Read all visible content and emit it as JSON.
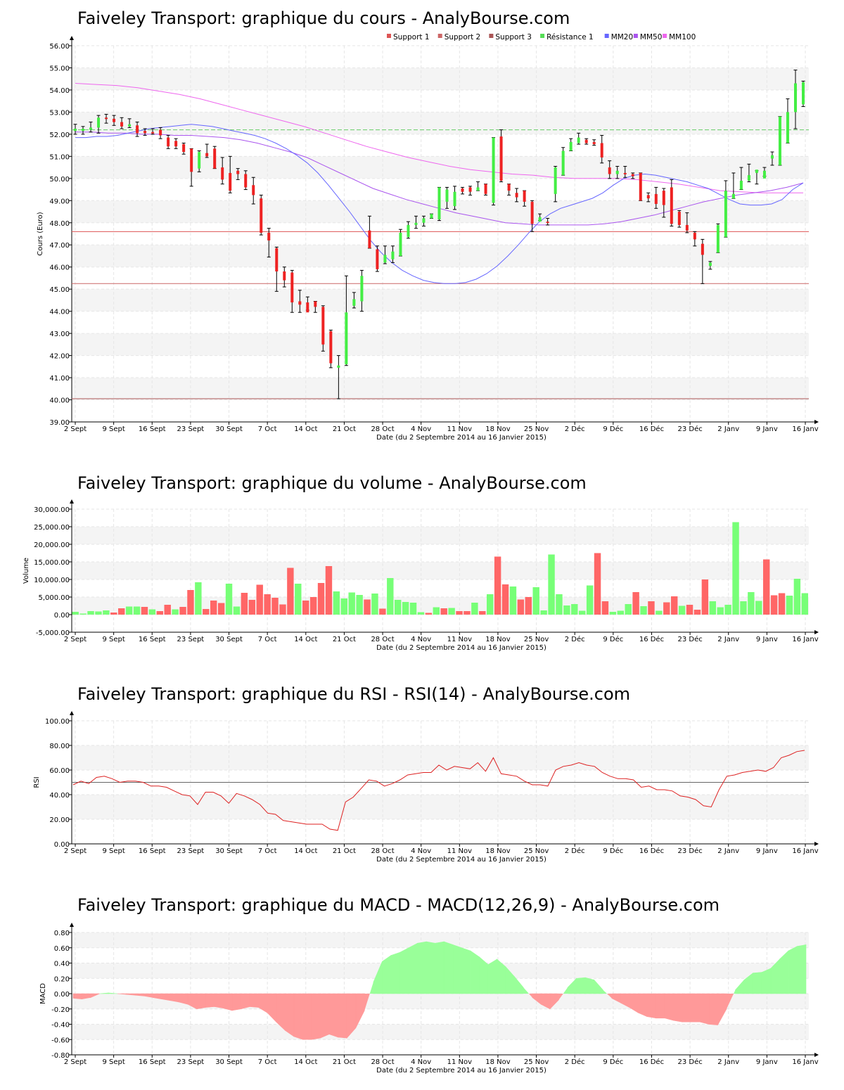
{
  "chart_data": [
    {
      "id": "cours",
      "type": "candlestick",
      "title": "Faiveley Transport: graphique du cours - AnalyBourse.com",
      "ylabel": "Cours (Euro)",
      "xlabel": "Date (du 2 Septembre 2014 au 16 Janvier 2015)",
      "ylim": [
        39,
        56
      ],
      "yticks": [
        "39.00",
        "40.00",
        "41.00",
        "42.00",
        "43.00",
        "44.00",
        "45.00",
        "46.00",
        "47.00",
        "48.00",
        "49.00",
        "50.00",
        "51.00",
        "52.00",
        "53.00",
        "54.00",
        "55.00",
        "56.00"
      ],
      "xticks": [
        "2 Sept",
        "9 Sept",
        "16 Sept",
        "23 Sept",
        "30 Sept",
        "7 Oct",
        "14 Oct",
        "21 Oct",
        "28 Oct",
        "4 Nov",
        "11 Nov",
        "18 Nov",
        "25 Nov",
        "2 Déc",
        "9 Déc",
        "16 Déc",
        "23 Déc",
        "2 Janv",
        "9 Janv",
        "16 Janv"
      ],
      "grid": true,
      "legend_position": "top-right",
      "legend": [
        {
          "name": "Support 1",
          "color": "#dd5555"
        },
        {
          "name": "Support 2",
          "color": "#cc6666"
        },
        {
          "name": "Support 3",
          "color": "#aa5555"
        },
        {
          "name": "Résistance 1",
          "color": "#55dd55"
        },
        {
          "name": "MM20",
          "color": "#6666ff"
        },
        {
          "name": "MM50",
          "color": "#aa55ee"
        },
        {
          "name": "MM100",
          "color": "#ee66ee"
        }
      ],
      "levels": {
        "support1": 47.6,
        "support2": 45.25,
        "support3": 40.05,
        "resistance1": 52.2
      },
      "candles": [
        [
          52.15,
          52.25,
          52.45,
          52.0
        ],
        [
          52.15,
          52.25,
          52.35,
          52.0
        ],
        [
          52.2,
          52.3,
          52.55,
          52.1
        ],
        [
          52.3,
          52.75,
          52.85,
          52.05
        ],
        [
          52.75,
          52.7,
          52.9,
          52.5
        ],
        [
          52.7,
          52.55,
          52.85,
          52.4
        ],
        [
          52.55,
          52.35,
          52.75,
          52.25
        ],
        [
          52.35,
          52.45,
          52.7,
          52.3
        ],
        [
          52.4,
          52.05,
          52.55,
          51.9
        ],
        [
          52.15,
          52.05,
          52.25,
          51.95
        ],
        [
          52.1,
          52.05,
          52.25,
          52.0
        ],
        [
          52.2,
          51.95,
          52.3,
          51.8
        ],
        [
          51.85,
          51.45,
          51.95,
          51.35
        ],
        [
          51.7,
          51.45,
          51.8,
          51.35
        ],
        [
          51.55,
          51.2,
          51.6,
          51.1
        ],
        [
          51.35,
          50.3,
          51.35,
          49.65
        ],
        [
          50.45,
          51.2,
          51.25,
          50.3
        ],
        [
          51.15,
          51.0,
          51.55,
          50.95
        ],
        [
          51.35,
          50.45,
          51.45,
          50.45
        ],
        [
          50.5,
          49.95,
          50.95,
          49.75
        ],
        [
          50.25,
          49.45,
          51.0,
          49.35
        ],
        [
          50.35,
          50.2,
          50.45,
          49.95
        ],
        [
          50.2,
          49.6,
          50.35,
          49.5
        ],
        [
          49.7,
          49.25,
          50.05,
          48.85
        ],
        [
          49.1,
          47.55,
          49.25,
          47.45
        ],
        [
          47.55,
          47.2,
          47.75,
          46.45
        ],
        [
          46.85,
          45.8,
          46.9,
          44.9
        ],
        [
          45.8,
          45.4,
          46.0,
          45.1
        ],
        [
          45.75,
          44.4,
          45.85,
          43.95
        ],
        [
          44.45,
          44.3,
          44.95,
          43.95
        ],
        [
          44.4,
          43.95,
          44.65,
          44.05
        ],
        [
          44.45,
          44.2,
          44.45,
          43.95
        ],
        [
          44.2,
          42.5,
          44.25,
          42.2
        ],
        [
          43.1,
          41.65,
          43.15,
          41.45
        ],
        [
          41.45,
          41.55,
          42.0,
          40.05
        ],
        [
          41.6,
          43.95,
          45.6,
          41.55
        ],
        [
          44.25,
          44.55,
          44.85,
          44.15
        ],
        [
          44.45,
          45.6,
          45.85,
          44.0
        ],
        [
          47.65,
          46.85,
          48.3,
          46.85
        ],
        [
          46.8,
          45.9,
          46.95,
          45.8
        ],
        [
          46.2,
          46.55,
          46.95,
          46.15
        ],
        [
          46.35,
          46.7,
          46.95,
          46.2
        ],
        [
          46.5,
          47.55,
          47.7,
          46.5
        ],
        [
          47.35,
          47.9,
          48.05,
          47.3
        ],
        [
          47.9,
          48.0,
          48.3,
          47.75
        ],
        [
          48.0,
          48.2,
          48.3,
          47.85
        ],
        [
          48.2,
          48.4,
          48.4,
          48.2
        ],
        [
          48.15,
          49.6,
          49.6,
          48.1
        ],
        [
          48.95,
          49.5,
          49.6,
          48.65
        ],
        [
          48.75,
          49.4,
          49.65,
          48.6
        ],
        [
          49.55,
          49.4,
          49.6,
          49.3
        ],
        [
          49.6,
          49.4,
          49.65,
          49.25
        ],
        [
          49.45,
          49.6,
          49.85,
          49.45
        ],
        [
          49.75,
          49.3,
          49.75,
          49.25
        ],
        [
          48.9,
          51.85,
          51.85,
          48.8
        ],
        [
          51.9,
          49.9,
          52.2,
          49.85
        ],
        [
          49.75,
          49.45,
          49.75,
          49.25
        ],
        [
          49.35,
          49.15,
          49.55,
          48.95
        ],
        [
          49.45,
          48.95,
          49.45,
          48.75
        ],
        [
          48.95,
          47.95,
          49.0,
          47.6
        ],
        [
          48.05,
          48.25,
          48.4,
          48.1
        ],
        [
          48.05,
          48.0,
          48.2,
          47.9
        ],
        [
          49.3,
          50.5,
          50.55,
          48.95
        ],
        [
          50.15,
          51.25,
          51.4,
          50.15
        ],
        [
          51.25,
          51.65,
          51.8,
          51.25
        ],
        [
          51.6,
          51.85,
          52.05,
          51.55
        ],
        [
          51.75,
          51.6,
          51.8,
          51.55
        ],
        [
          51.65,
          51.55,
          51.75,
          51.5
        ],
        [
          51.6,
          50.95,
          51.95,
          50.7
        ],
        [
          50.5,
          50.2,
          50.8,
          50.0
        ],
        [
          50.2,
          50.35,
          50.55,
          50.0
        ],
        [
          50.25,
          50.2,
          50.55,
          50.05
        ],
        [
          50.2,
          50.1,
          50.25,
          50.0
        ],
        [
          50.25,
          49.0,
          50.25,
          49.0
        ],
        [
          49.25,
          49.1,
          49.35,
          48.95
        ],
        [
          49.3,
          48.85,
          49.6,
          48.65
        ],
        [
          49.45,
          48.8,
          49.55,
          48.25
        ],
        [
          49.6,
          47.95,
          49.95,
          47.85
        ],
        [
          48.5,
          47.9,
          48.55,
          47.8
        ],
        [
          47.9,
          47.65,
          48.45,
          47.55
        ],
        [
          47.55,
          47.25,
          47.6,
          46.95
        ],
        [
          47.05,
          46.55,
          47.25,
          45.25
        ],
        [
          46.05,
          46.2,
          46.25,
          45.9
        ],
        [
          46.65,
          47.9,
          47.95,
          46.65
        ],
        [
          47.35,
          49.45,
          49.9,
          47.35
        ],
        [
          49.1,
          49.3,
          50.25,
          49.1
        ],
        [
          49.5,
          49.9,
          50.5,
          49.5
        ],
        [
          49.9,
          50.15,
          50.65,
          49.85
        ],
        [
          50.25,
          50.4,
          50.35,
          49.75
        ],
        [
          50.0,
          50.35,
          50.5,
          50.1
        ],
        [
          50.9,
          51.05,
          51.2,
          50.6
        ],
        [
          50.6,
          52.8,
          52.8,
          50.6
        ],
        [
          51.6,
          53.0,
          53.6,
          51.6
        ],
        [
          53.0,
          54.3,
          54.9,
          52.25
        ],
        [
          53.35,
          54.35,
          54.4,
          53.25
        ]
      ],
      "mm20": [
        51.85,
        51.85,
        51.9,
        51.9,
        51.95,
        52.05,
        52.15,
        52.25,
        52.3,
        52.35,
        52.4,
        52.45,
        52.4,
        52.35,
        52.25,
        52.15,
        52.05,
        51.95,
        51.8,
        51.6,
        51.35,
        51.05,
        50.7,
        50.25,
        49.7,
        49.1,
        48.5,
        47.85,
        47.2,
        46.65,
        46.2,
        45.85,
        45.6,
        45.4,
        45.3,
        45.25,
        45.25,
        45.3,
        45.45,
        45.7,
        46.05,
        46.5,
        47.0,
        47.55,
        48.05,
        48.4,
        48.65,
        48.8,
        48.95,
        49.1,
        49.35,
        49.7,
        50.0,
        50.15,
        50.2,
        50.15,
        50.05,
        49.95,
        49.85,
        49.7,
        49.55,
        49.3,
        49.05,
        48.85,
        48.8,
        48.8,
        48.85,
        49.05,
        49.5,
        49.8
      ],
      "mm50": [
        52.1,
        52.1,
        52.05,
        52.05,
        52.0,
        52.0,
        51.95,
        51.95,
        51.9,
        51.85,
        51.75,
        51.6,
        51.4,
        51.2,
        50.95,
        50.6,
        50.25,
        49.9,
        49.55,
        49.3,
        49.05,
        48.85,
        48.65,
        48.45,
        48.3,
        48.15,
        48.0,
        47.95,
        47.9,
        47.9,
        47.9,
        47.9,
        47.95,
        48.05,
        48.2,
        48.35,
        48.55,
        48.75,
        48.95,
        49.1,
        49.25,
        49.35,
        49.45,
        49.6,
        49.8
      ],
      "mm100": [
        54.3,
        54.25,
        54.2,
        54.1,
        53.95,
        53.8,
        53.6,
        53.35,
        53.1,
        52.85,
        52.6,
        52.35,
        52.05,
        51.75,
        51.45,
        51.2,
        50.95,
        50.75,
        50.55,
        50.4,
        50.3,
        50.2,
        50.15,
        50.05,
        50.0,
        50.0,
        50.0,
        49.95,
        49.85,
        49.75,
        49.6,
        49.45,
        49.4,
        49.35,
        49.35,
        49.35
      ]
    },
    {
      "id": "volume",
      "type": "bar",
      "title": "Faiveley Transport: graphique du volume - AnalyBourse.com",
      "ylabel": "Volume",
      "xlabel": "Date (du 2 Septembre 2014 au 16 Janvier 2015)",
      "ylim": [
        -5000,
        30000
      ],
      "yticks": [
        "-5,000.00",
        "0.00",
        "5,000.00",
        "10,000.00",
        "15,000.00",
        "20,000.00",
        "25,000.00",
        "30,000.00"
      ],
      "xticks": [
        "2 Sept",
        "9 Sept",
        "16 Sept",
        "23 Sept",
        "30 Sept",
        "7 Oct",
        "14 Oct",
        "21 Oct",
        "28 Oct",
        "4 Nov",
        "11 Nov",
        "18 Nov",
        "25 Nov",
        "2 Déc",
        "9 Déc",
        "16 Déc",
        "23 Déc",
        "2 Janv",
        "9 Janv",
        "16 Janv"
      ],
      "grid": true,
      "values": [
        800,
        300,
        1000,
        900,
        1200,
        600,
        1800,
        2300,
        2300,
        2200,
        1500,
        1000,
        2800,
        1500,
        2200,
        7000,
        9200,
        1600,
        4000,
        3300,
        8800,
        2300,
        6200,
        4200,
        8500,
        5800,
        4800,
        2900,
        13300,
        8800,
        4000,
        5000,
        9000,
        13800,
        6600,
        4600,
        6300,
        5600,
        4300,
        6000,
        1700,
        10400,
        4200,
        3600,
        3400,
        700,
        500,
        2100,
        1800,
        1900,
        1000,
        1000,
        3400,
        1000,
        5800,
        16500,
        8600,
        8000,
        4300,
        5000,
        7800,
        1200,
        17100,
        5800,
        2600,
        3000,
        1100,
        8300,
        17500,
        3800,
        800,
        1100,
        3000,
        6400,
        2400,
        3800,
        1100,
        3500,
        5200,
        2500,
        2800,
        1400,
        10000,
        3800,
        2100,
        2800,
        26300,
        3800,
        6400,
        3900,
        15700,
        5500,
        6100,
        5400,
        10200,
        6100
      ],
      "colors": [
        "g",
        "g",
        "g",
        "g",
        "g",
        "r",
        "r",
        "g",
        "g",
        "r",
        "g",
        "r",
        "r",
        "g",
        "r",
        "r",
        "g",
        "r",
        "r",
        "r",
        "g",
        "g",
        "r",
        "r",
        "r",
        "r",
        "r",
        "r",
        "r",
        "g",
        "r",
        "r",
        "r",
        "r",
        "g",
        "g",
        "g",
        "g",
        "r",
        "g",
        "r",
        "g",
        "g",
        "g",
        "g",
        "g",
        "r",
        "g",
        "r",
        "g",
        "r",
        "r",
        "g",
        "r",
        "g",
        "r",
        "r",
        "g",
        "r",
        "r",
        "g",
        "g",
        "g",
        "g",
        "g",
        "g",
        "g",
        "g",
        "r",
        "r",
        "g",
        "g",
        "g",
        "r",
        "g",
        "r",
        "g",
        "r",
        "r",
        "g",
        "r",
        "r",
        "r",
        "g",
        "g",
        "g",
        "g",
        "g",
        "g",
        "g",
        "r",
        "r",
        "r",
        "g",
        "g",
        "g"
      ]
    },
    {
      "id": "rsi",
      "type": "line",
      "title": "Faiveley Transport: graphique du RSI - RSI(14) - AnalyBourse.com",
      "ylabel": "RSI",
      "xlabel": "Date (du 2 Septembre 2014 au 16 Janvier 2015)",
      "ylim": [
        0,
        100
      ],
      "yticks": [
        "0.00",
        "20.00",
        "40.00",
        "60.00",
        "80.00",
        "100.00"
      ],
      "xticks": [
        "2 Sept",
        "9 Sept",
        "16 Sept",
        "23 Sept",
        "30 Sept",
        "7 Oct",
        "14 Oct",
        "21 Oct",
        "28 Oct",
        "4 Nov",
        "11 Nov",
        "18 Nov",
        "25 Nov",
        "2 Déc",
        "9 Déc",
        "16 Déc",
        "23 Déc",
        "2 Janv",
        "9 Janv",
        "16 Janv"
      ],
      "grid": true,
      "reference_line": 50,
      "values": [
        48,
        51,
        49,
        54,
        55,
        53,
        50,
        51,
        51,
        50,
        47,
        47,
        46,
        43,
        40,
        39,
        32,
        42,
        42,
        39,
        33,
        41,
        39,
        36,
        32,
        25,
        24,
        19,
        18,
        17,
        16,
        16,
        16,
        12,
        11,
        34,
        38,
        45,
        52,
        51,
        47,
        49,
        52,
        56,
        57,
        58,
        58,
        64,
        60,
        63,
        62,
        61,
        66,
        59,
        70,
        57,
        56,
        55,
        51,
        48,
        48,
        47,
        60,
        63,
        64,
        66,
        64,
        63,
        58,
        55,
        53,
        53,
        52,
        46,
        47,
        44,
        44,
        43,
        39,
        38,
        36,
        31,
        30,
        44,
        55,
        56,
        58,
        59,
        60,
        59,
        62,
        70,
        72,
        75,
        76
      ]
    },
    {
      "id": "macd",
      "type": "area",
      "title": "Faiveley Transport: graphique du MACD - MACD(12,26,9) - AnalyBourse.com",
      "ylabel": "MACD",
      "xlabel": "Date (du 2 Septembre 2014 au 16 Janvier 2015)",
      "ylim": [
        -0.8,
        0.8
      ],
      "yticks": [
        "-0.80",
        "-0.60",
        "-0.40",
        "-0.20",
        "0.00",
        "0.20",
        "0.40",
        "0.60",
        "0.80"
      ],
      "xticks": [
        "2 Sept",
        "9 Sept",
        "16 Sept",
        "23 Sept",
        "30 Sept",
        "7 Oct",
        "14 Oct",
        "21 Oct",
        "28 Oct",
        "4 Nov",
        "11 Nov",
        "18 Nov",
        "25 Nov",
        "2 Déc",
        "9 Déc",
        "16 Déc",
        "23 Déc",
        "2 Janv",
        "9 Janv",
        "16 Janv"
      ],
      "grid": true,
      "values": [
        -0.06,
        -0.07,
        -0.05,
        0.0,
        0.01,
        0.0,
        -0.01,
        -0.02,
        -0.03,
        -0.05,
        -0.07,
        -0.09,
        -0.11,
        -0.14,
        -0.2,
        -0.18,
        -0.17,
        -0.19,
        -0.22,
        -0.2,
        -0.17,
        -0.18,
        -0.25,
        -0.37,
        -0.48,
        -0.56,
        -0.6,
        -0.6,
        -0.58,
        -0.53,
        -0.57,
        -0.58,
        -0.45,
        -0.22,
        0.15,
        0.42,
        0.5,
        0.54,
        0.6,
        0.66,
        0.68,
        0.66,
        0.68,
        0.64,
        0.6,
        0.56,
        0.48,
        0.38,
        0.45,
        0.35,
        0.22,
        0.08,
        -0.05,
        -0.14,
        -0.2,
        -0.08,
        0.08,
        0.2,
        0.21,
        0.18,
        0.05,
        -0.06,
        -0.12,
        -0.18,
        -0.25,
        -0.3,
        -0.32,
        -0.32,
        -0.35,
        -0.37,
        -0.37,
        -0.37,
        -0.4,
        -0.41,
        -0.2,
        0.05,
        0.18,
        0.27,
        0.28,
        0.33,
        0.45,
        0.56,
        0.62,
        0.64
      ]
    }
  ]
}
